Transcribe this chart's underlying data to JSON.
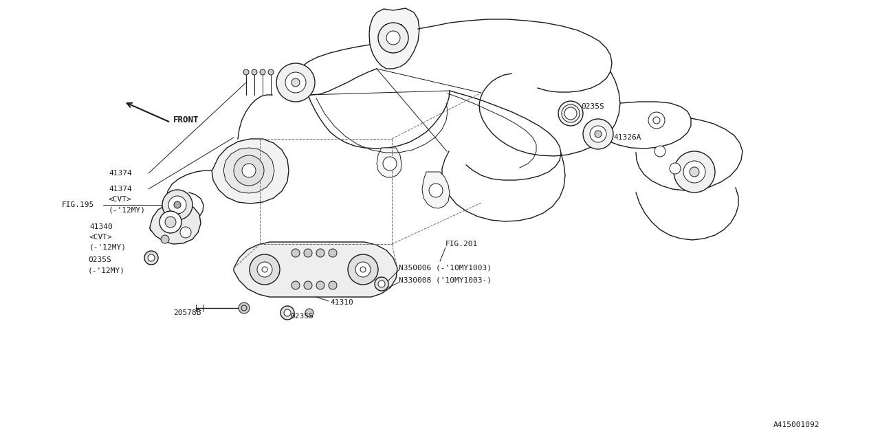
{
  "bg_color": "#ffffff",
  "line_color": "#1a1a1a",
  "fig_width": 12.8,
  "fig_height": 6.4,
  "dpi": 100,
  "labels": {
    "front": "FRONT",
    "part_0235S_tr": "0235S",
    "part_41326A": "41326A",
    "part_41374_a": "41374",
    "part_41374_b": "41374",
    "part_cvt_b": "<CVT>",
    "part_12my_b": "(-’12MY)",
    "part_fig195": "FIG.195",
    "part_41340": "41340",
    "part_cvt_c": "<CVT>",
    "part_12my_c": "(-’12MY)",
    "part_0235S_bl": "0235S",
    "part_12my_d": "(-’12MY)",
    "part_20578B": "20578B",
    "part_0235S_bc": "0235S",
    "part_41310": "41310",
    "part_N350006": "N350006 (-’10MY1003)",
    "part_N330008": "N330008 (’10MY1003-)",
    "part_fig201": "FIG.201",
    "part_A415": "A415001092"
  },
  "font_size": 8,
  "font_family": "monospace"
}
